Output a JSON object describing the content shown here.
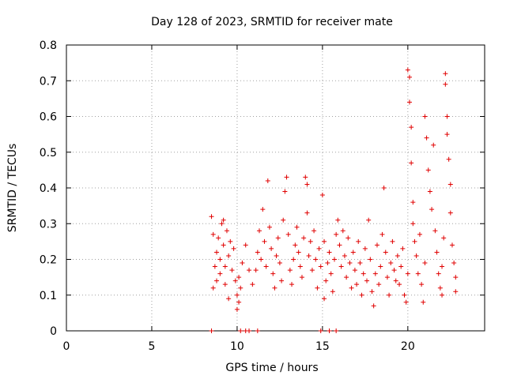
{
  "chart_data": {
    "type": "scatter",
    "title": "Day 128 of 2023, SRMTID for receiver mate",
    "xlabel": "GPS time / hours",
    "ylabel": "SRMTID / TECUs",
    "xlim": [
      0,
      24.5
    ],
    "ylim": [
      0,
      0.8
    ],
    "xticks": [
      0,
      5,
      10,
      15,
      20
    ],
    "yticks": [
      0,
      0.1,
      0.2,
      0.3,
      0.4,
      0.5,
      0.6,
      0.7,
      0.8
    ],
    "xtick_labels": [
      "0",
      "5",
      "10",
      "15",
      "20"
    ],
    "ytick_labels": [
      "0",
      "0.1",
      "0.2",
      "0.3",
      "0.4",
      "0.5",
      "0.6",
      "0.7",
      "0.8"
    ],
    "grid": true,
    "marker": "+",
    "color": "#e00000",
    "series": [
      {
        "name": "SRMTID",
        "points": [
          [
            8.5,
            0.32
          ],
          [
            8.6,
            0.27
          ],
          [
            8.6,
            0.12
          ],
          [
            8.7,
            0.18
          ],
          [
            8.8,
            0.22
          ],
          [
            8.8,
            0.14
          ],
          [
            8.9,
            0.26
          ],
          [
            9.0,
            0.2
          ],
          [
            9.0,
            0.16
          ],
          [
            9.1,
            0.3
          ],
          [
            9.2,
            0.31
          ],
          [
            9.2,
            0.24
          ],
          [
            9.3,
            0.18
          ],
          [
            9.3,
            0.13
          ],
          [
            9.4,
            0.28
          ],
          [
            9.5,
            0.21
          ],
          [
            9.5,
            0.09
          ],
          [
            9.6,
            0.25
          ],
          [
            9.7,
            0.17
          ],
          [
            9.8,
            0.23
          ],
          [
            9.9,
            0.14
          ],
          [
            10.0,
            0.1
          ],
          [
            10.0,
            0.06
          ],
          [
            10.1,
            0.08
          ],
          [
            10.1,
            0.15
          ],
          [
            10.2,
            0.12
          ],
          [
            10.3,
            0.19
          ],
          [
            10.5,
            0.24
          ],
          [
            10.7,
            0.17
          ],
          [
            10.9,
            0.13
          ],
          [
            11.1,
            0.17
          ],
          [
            11.2,
            0.22
          ],
          [
            11.3,
            0.28
          ],
          [
            11.4,
            0.2
          ],
          [
            11.5,
            0.34
          ],
          [
            11.6,
            0.25
          ],
          [
            11.7,
            0.18
          ],
          [
            11.8,
            0.42
          ],
          [
            11.9,
            0.29
          ],
          [
            12.0,
            0.23
          ],
          [
            12.1,
            0.16
          ],
          [
            12.2,
            0.12
          ],
          [
            12.3,
            0.21
          ],
          [
            12.4,
            0.26
          ],
          [
            12.5,
            0.19
          ],
          [
            12.6,
            0.14
          ],
          [
            12.7,
            0.31
          ],
          [
            12.8,
            0.39
          ],
          [
            12.9,
            0.43
          ],
          [
            13.0,
            0.27
          ],
          [
            13.1,
            0.17
          ],
          [
            13.2,
            0.13
          ],
          [
            13.3,
            0.2
          ],
          [
            13.4,
            0.24
          ],
          [
            13.5,
            0.29
          ],
          [
            13.6,
            0.22
          ],
          [
            13.7,
            0.18
          ],
          [
            13.8,
            0.15
          ],
          [
            13.9,
            0.26
          ],
          [
            14.0,
            0.43
          ],
          [
            14.1,
            0.41
          ],
          [
            14.1,
            0.33
          ],
          [
            14.2,
            0.21
          ],
          [
            14.3,
            0.25
          ],
          [
            14.4,
            0.17
          ],
          [
            14.5,
            0.28
          ],
          [
            14.6,
            0.2
          ],
          [
            14.7,
            0.12
          ],
          [
            14.8,
            0.23
          ],
          [
            14.9,
            0.18
          ],
          [
            15.0,
            0.38
          ],
          [
            15.1,
            0.25
          ],
          [
            15.1,
            0.09
          ],
          [
            15.2,
            0.14
          ],
          [
            15.3,
            0.19
          ],
          [
            15.4,
            0.22
          ],
          [
            15.5,
            0.16
          ],
          [
            15.6,
            0.11
          ],
          [
            15.7,
            0.2
          ],
          [
            15.8,
            0.27
          ],
          [
            15.9,
            0.31
          ],
          [
            16.0,
            0.24
          ],
          [
            16.1,
            0.18
          ],
          [
            16.2,
            0.28
          ],
          [
            16.3,
            0.21
          ],
          [
            16.4,
            0.15
          ],
          [
            16.5,
            0.26
          ],
          [
            16.6,
            0.19
          ],
          [
            16.7,
            0.12
          ],
          [
            16.8,
            0.22
          ],
          [
            16.9,
            0.17
          ],
          [
            17.0,
            0.13
          ],
          [
            17.1,
            0.25
          ],
          [
            17.2,
            0.19
          ],
          [
            17.3,
            0.1
          ],
          [
            17.4,
            0.16
          ],
          [
            17.5,
            0.23
          ],
          [
            17.6,
            0.14
          ],
          [
            17.7,
            0.31
          ],
          [
            17.8,
            0.2
          ],
          [
            17.9,
            0.11
          ],
          [
            18.0,
            0.07
          ],
          [
            18.1,
            0.16
          ],
          [
            18.2,
            0.24
          ],
          [
            18.3,
            0.13
          ],
          [
            18.4,
            0.18
          ],
          [
            18.5,
            0.27
          ],
          [
            18.6,
            0.4
          ],
          [
            18.7,
            0.22
          ],
          [
            18.8,
            0.15
          ],
          [
            18.9,
            0.1
          ],
          [
            19.0,
            0.19
          ],
          [
            19.1,
            0.25
          ],
          [
            19.2,
            0.17
          ],
          [
            19.3,
            0.14
          ],
          [
            19.4,
            0.21
          ],
          [
            19.5,
            0.13
          ],
          [
            19.6,
            0.18
          ],
          [
            19.7,
            0.23
          ],
          [
            19.8,
            0.1
          ],
          [
            19.9,
            0.08
          ],
          [
            20.0,
            0.16
          ],
          [
            20.0,
            0.73
          ],
          [
            20.1,
            0.71
          ],
          [
            20.1,
            0.64
          ],
          [
            20.2,
            0.57
          ],
          [
            20.2,
            0.47
          ],
          [
            20.3,
            0.36
          ],
          [
            20.3,
            0.3
          ],
          [
            20.4,
            0.25
          ],
          [
            20.5,
            0.21
          ],
          [
            20.6,
            0.16
          ],
          [
            20.7,
            0.27
          ],
          [
            20.8,
            0.13
          ],
          [
            20.9,
            0.08
          ],
          [
            21.0,
            0.19
          ],
          [
            21.0,
            0.6
          ],
          [
            21.1,
            0.54
          ],
          [
            21.2,
            0.45
          ],
          [
            21.3,
            0.39
          ],
          [
            21.4,
            0.34
          ],
          [
            21.5,
            0.52
          ],
          [
            21.6,
            0.28
          ],
          [
            21.7,
            0.22
          ],
          [
            21.8,
            0.16
          ],
          [
            21.9,
            0.12
          ],
          [
            22.0,
            0.1
          ],
          [
            22.0,
            0.18
          ],
          [
            22.1,
            0.26
          ],
          [
            22.2,
            0.72
          ],
          [
            22.2,
            0.69
          ],
          [
            22.3,
            0.6
          ],
          [
            22.3,
            0.55
          ],
          [
            22.4,
            0.48
          ],
          [
            22.5,
            0.41
          ],
          [
            22.5,
            0.33
          ],
          [
            22.6,
            0.24
          ],
          [
            22.7,
            0.19
          ],
          [
            22.8,
            0.15
          ],
          [
            22.8,
            0.11
          ],
          [
            8.5,
            0.0
          ],
          [
            10.2,
            0.0
          ],
          [
            10.5,
            0.0
          ],
          [
            10.7,
            0.0
          ],
          [
            11.2,
            0.0
          ],
          [
            14.9,
            0.0
          ],
          [
            15.4,
            0.0
          ],
          [
            15.8,
            0.0
          ]
        ]
      }
    ]
  }
}
